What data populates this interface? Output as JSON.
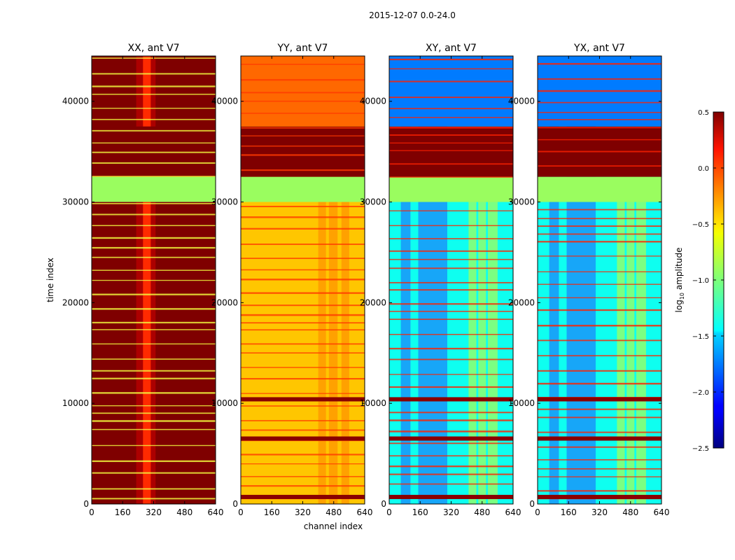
{
  "figure": {
    "suptitle": "2015-12-07 0.0-24.0",
    "colorbar": {
      "label_prefix": "log",
      "label_sub": "10",
      "label_suffix": " amplitude",
      "range": [
        -2.5,
        0.5
      ],
      "ticks": [
        0.5,
        0.0,
        -0.5,
        -1.0,
        -1.5,
        -2.0,
        -2.5
      ],
      "tick_labels": [
        "0.5",
        "0.0",
        "−0.5",
        "−1.0",
        "−1.5",
        "−2.0",
        "−2.5"
      ],
      "colormap": "jet"
    }
  },
  "chart_data": [
    {
      "type": "heatmap",
      "title": "XX, ant V7",
      "xlabel": "",
      "ylabel": "time index",
      "xlim": [
        0,
        640
      ],
      "ylim": [
        0,
        44500
      ],
      "xticks": [
        0,
        160,
        320,
        480,
        640
      ],
      "xtick_labels": [
        "0",
        "160",
        "320",
        "480",
        "640"
      ],
      "yticks": [
        0,
        10000,
        20000,
        30000,
        40000
      ],
      "ytick_labels": [
        "0",
        "10000",
        "20000",
        "30000",
        "40000"
      ],
      "base_value": 0.5,
      "blocks": [
        {
          "t0": 30000,
          "t1": 32500,
          "value": -0.9
        },
        {
          "t0": 32500,
          "t1": 37500,
          "value": 0.5
        }
      ],
      "features": "high amplitude (~0.5) across all channels with a brighter peak near channel 270-300; thin flagged rows throughout"
    },
    {
      "type": "heatmap",
      "title": "YY, ant V7",
      "xlabel": "channel index",
      "ylabel": "",
      "xlim": [
        0,
        640
      ],
      "ylim": [
        0,
        44500
      ],
      "xticks": [
        0,
        160,
        320,
        480,
        640
      ],
      "xtick_labels": [
        "0",
        "160",
        "320",
        "480",
        "640"
      ],
      "yticks": [
        0,
        10000,
        20000,
        30000,
        40000
      ],
      "ytick_labels": [
        "0",
        "10000",
        "20000",
        "30000",
        "40000"
      ],
      "base_value": -0.4,
      "blocks": [
        {
          "t0": 30000,
          "t1": 32500,
          "value": -0.9
        },
        {
          "t0": 32500,
          "t1": 37500,
          "value": 0.5
        },
        {
          "t0": 37500,
          "t1": 44500,
          "value": -0.1
        }
      ],
      "features": "moderate amplitude (~-0.4), brighter RFI columns near channels 400-500, strong rows near t=10400, 6500 and 600"
    },
    {
      "type": "heatmap",
      "title": "XY, ant V7",
      "xlabel": "",
      "ylabel": "",
      "xlim": [
        0,
        640
      ],
      "ylim": [
        0,
        44500
      ],
      "xticks": [
        0,
        160,
        320,
        480,
        640
      ],
      "xtick_labels": [
        "0",
        "160",
        "320",
        "480",
        "640"
      ],
      "yticks": [
        0,
        10000,
        20000,
        30000,
        40000
      ],
      "ytick_labels": [
        "0",
        "10000",
        "20000",
        "30000",
        "40000"
      ],
      "base_value": -1.4,
      "blocks": [
        {
          "t0": 30000,
          "t1": 32500,
          "value": -0.9
        },
        {
          "t0": 32500,
          "t1": 37500,
          "value": 0.5
        },
        {
          "t0": 37500,
          "t1": 44500,
          "value": -1.8
        }
      ],
      "features": "low amplitude (~-1.4), darker bands near channels 150-300, RFI columns near 420-560"
    },
    {
      "type": "heatmap",
      "title": "YX, ant V7",
      "xlabel": "",
      "ylabel": "",
      "xlim": [
        0,
        640
      ],
      "ylim": [
        0,
        44500
      ],
      "xticks": [
        0,
        160,
        320,
        480,
        640
      ],
      "xtick_labels": [
        "0",
        "160",
        "320",
        "480",
        "640"
      ],
      "yticks": [
        0,
        10000,
        20000,
        30000,
        40000
      ],
      "ytick_labels": [
        "0",
        "10000",
        "20000",
        "30000",
        "40000"
      ],
      "base_value": -1.4,
      "blocks": [
        {
          "t0": 30000,
          "t1": 32500,
          "value": -0.9
        },
        {
          "t0": 32500,
          "t1": 37500,
          "value": 0.5
        },
        {
          "t0": 37500,
          "t1": 44500,
          "value": -1.8
        }
      ],
      "features": "low amplitude (~-1.4), darker bands near channels 150-300, RFI columns near 420-560"
    }
  ]
}
